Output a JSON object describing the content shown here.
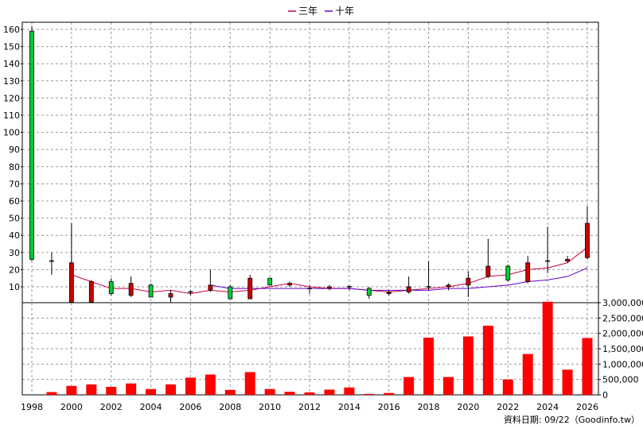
{
  "chart_data": [
    {
      "type": "candlestick",
      "legend": [
        {
          "name": "三年",
          "color": "#cc0044"
        },
        {
          "name": "十年",
          "color": "#6600cc"
        }
      ],
      "legend_placement": "top-center",
      "grid": true,
      "xlim": [
        1998,
        2026
      ],
      "ylim": [
        0,
        165
      ],
      "yticks": [
        10,
        20,
        30,
        40,
        50,
        60,
        70,
        80,
        90,
        100,
        110,
        120,
        130,
        140,
        150,
        160
      ],
      "xticks": [
        1998,
        2000,
        2002,
        2004,
        2006,
        2008,
        2010,
        2012,
        2014,
        2016,
        2018,
        2020,
        2022,
        2024,
        2026
      ],
      "candles": [
        {
          "x": 1998,
          "open": 26,
          "close": 159,
          "high": 162,
          "low": 25
        },
        {
          "x": 1999,
          "open": 25,
          "close": 25,
          "high": 30,
          "low": 17
        },
        {
          "x": 2000,
          "open": 24,
          "close": 1,
          "high": 47,
          "low": 1
        },
        {
          "x": 2001,
          "open": 13,
          "close": 1,
          "high": 14,
          "low": 1
        },
        {
          "x": 2002,
          "open": 6,
          "close": 13,
          "high": 15,
          "low": 5
        },
        {
          "x": 2003,
          "open": 12,
          "close": 5,
          "high": 16,
          "low": 4
        },
        {
          "x": 2004,
          "open": 4,
          "close": 11,
          "high": 12,
          "low": 4
        },
        {
          "x": 2005,
          "open": 6,
          "close": 4,
          "high": 8,
          "low": 1
        },
        {
          "x": 2006,
          "open": 7,
          "close": 7,
          "high": 8,
          "low": 5
        },
        {
          "x": 2007,
          "open": 11,
          "close": 8,
          "high": 20,
          "low": 7
        },
        {
          "x": 2008,
          "open": 3,
          "close": 10,
          "high": 11,
          "low": 3
        },
        {
          "x": 2009,
          "open": 15,
          "close": 3,
          "high": 17,
          "low": 3
        },
        {
          "x": 2010,
          "open": 11,
          "close": 15,
          "high": 15,
          "low": 11
        },
        {
          "x": 2011,
          "open": 12,
          "close": 11,
          "high": 13,
          "low": 10
        },
        {
          "x": 2012,
          "open": 9,
          "close": 9,
          "high": 11,
          "low": 6
        },
        {
          "x": 2013,
          "open": 10,
          "close": 9,
          "high": 11,
          "low": 8
        },
        {
          "x": 2014,
          "open": 10,
          "close": 10,
          "high": 11,
          "low": 8
        },
        {
          "x": 2015,
          "open": 5,
          "close": 9,
          "high": 10,
          "low": 3
        },
        {
          "x": 2016,
          "open": 7,
          "close": 6,
          "high": 8,
          "low": 5
        },
        {
          "x": 2017,
          "open": 10,
          "close": 7,
          "high": 16,
          "low": 6
        },
        {
          "x": 2018,
          "open": 10,
          "close": 10,
          "high": 25,
          "low": 8
        },
        {
          "x": 2019,
          "open": 11,
          "close": 10,
          "high": 12,
          "low": 8
        },
        {
          "x": 2020,
          "open": 15,
          "close": 11,
          "high": 19,
          "low": 4
        },
        {
          "x": 2021,
          "open": 22,
          "close": 16,
          "high": 38,
          "low": 15
        },
        {
          "x": 2022,
          "open": 14,
          "close": 22,
          "high": 23,
          "low": 13
        },
        {
          "x": 2023,
          "open": 24,
          "close": 13,
          "high": 28,
          "low": 12
        },
        {
          "x": 2024,
          "open": 25,
          "close": 25,
          "high": 45,
          "low": 18
        },
        {
          "x": 2025,
          "open": 26,
          "close": 25,
          "high": 28,
          "low": 24
        },
        {
          "x": 2026,
          "open": 47,
          "close": 27,
          "high": 57,
          "low": 26
        }
      ],
      "up_color": "#00cc33",
      "down_color": "#cc0000",
      "series": [
        {
          "name": "三年",
          "color": "#cc0044",
          "x": [
            2000,
            2001,
            2002,
            2003,
            2004,
            2005,
            2006,
            2007,
            2008,
            2009,
            2010,
            2011,
            2012,
            2013,
            2014,
            2015,
            2016,
            2017,
            2018,
            2019,
            2020,
            2021,
            2022,
            2023,
            2024,
            2025,
            2026
          ],
          "y": [
            17,
            13,
            9,
            9,
            7,
            8,
            6,
            8,
            7,
            8,
            10,
            12,
            10,
            9,
            9,
            8,
            7,
            8,
            9,
            10,
            12,
            16,
            17,
            20,
            21,
            24,
            33
          ]
        },
        {
          "name": "十年",
          "color": "#6600cc",
          "x": [
            2007,
            2008,
            2009,
            2010,
            2011,
            2012,
            2013,
            2014,
            2015,
            2016,
            2017,
            2018,
            2019,
            2020,
            2021,
            2022,
            2023,
            2024,
            2025,
            2026
          ],
          "y": [
            11,
            9,
            9,
            9,
            9,
            9,
            9,
            9,
            8,
            8,
            8,
            8,
            9,
            9,
            10,
            11,
            13,
            14,
            16,
            21
          ]
        }
      ]
    },
    {
      "type": "bar",
      "color": "#ff0000",
      "ylim": [
        0,
        3000000
      ],
      "yticks_labels": [
        "0",
        "500,000",
        "1,000,000",
        "1,500,000",
        "2,000,000",
        "2,500,000",
        "3,000,000"
      ],
      "yticks": [
        0,
        500000,
        1000000,
        1500000,
        2000000,
        2500000,
        3000000
      ],
      "x": [
        1998,
        1999,
        2000,
        2001,
        2002,
        2003,
        2004,
        2005,
        2006,
        2007,
        2008,
        2009,
        2010,
        2011,
        2012,
        2013,
        2014,
        2015,
        2016,
        2017,
        2018,
        2019,
        2020,
        2021,
        2022,
        2023,
        2024,
        2025,
        2026
      ],
      "values": [
        0,
        90000,
        290000,
        340000,
        260000,
        370000,
        190000,
        340000,
        560000,
        660000,
        160000,
        740000,
        190000,
        100000,
        80000,
        170000,
        240000,
        30000,
        60000,
        580000,
        1860000,
        580000,
        1900000,
        2250000,
        500000,
        1330000,
        3030000,
        820000,
        1850000
      ]
    }
  ],
  "footer": "資料日期: 09/22（Goodinfo.tw）"
}
